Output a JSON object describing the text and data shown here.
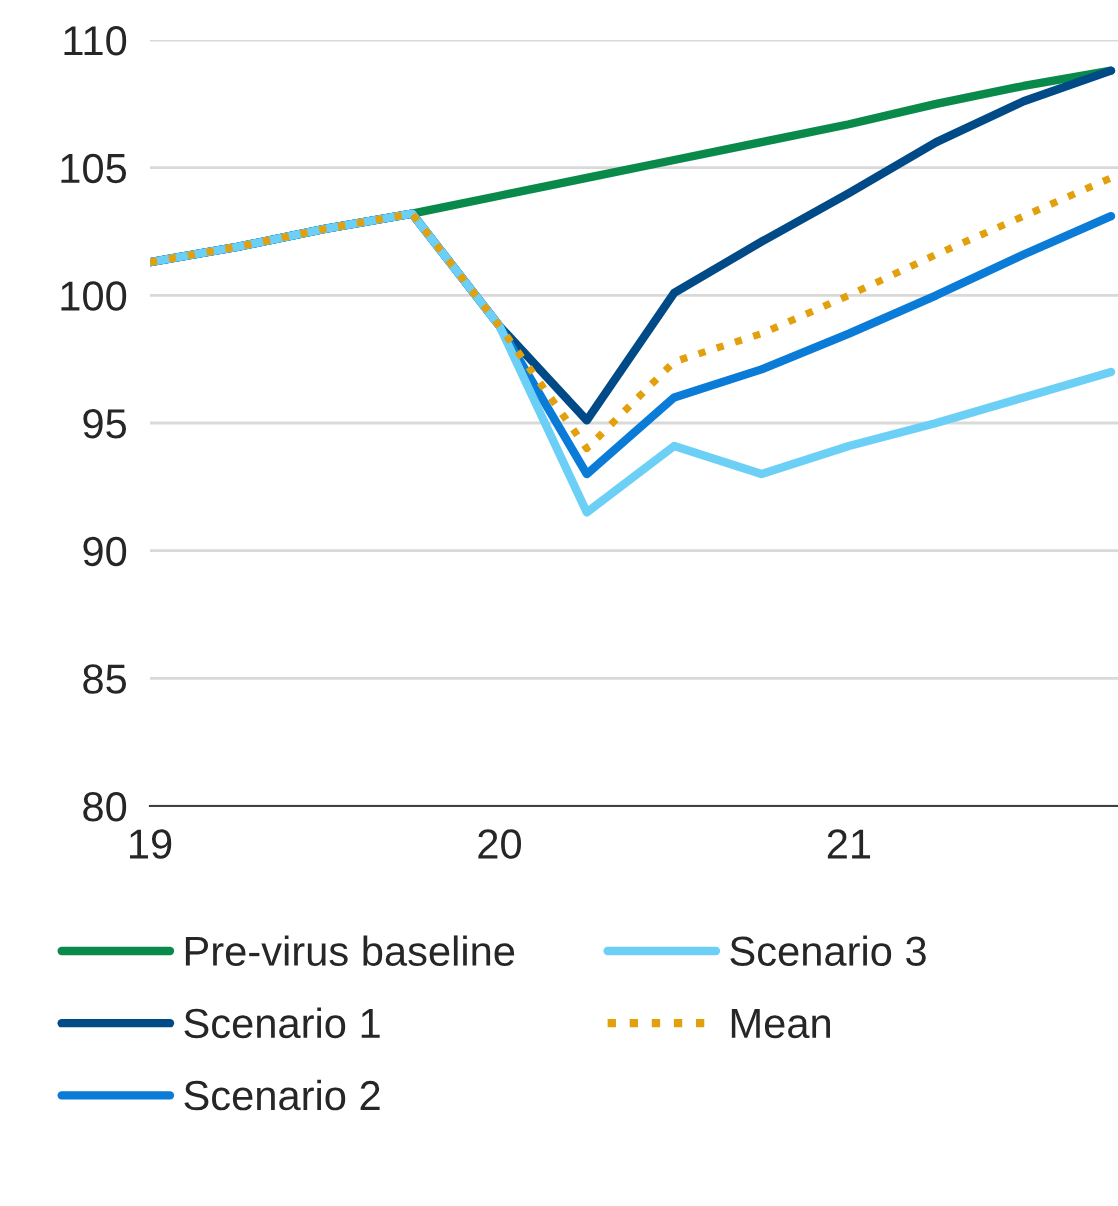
{
  "chart_data": {
    "type": "line",
    "x": [
      19,
      19.25,
      19.5,
      19.75,
      20,
      20.25,
      20.5,
      20.75,
      21,
      21.25,
      21.5,
      21.75
    ],
    "series": [
      {
        "name": "Pre-virus baseline",
        "color": "#0a8a4a",
        "values": [
          101.3,
          101.9,
          102.6,
          103.2,
          103.9,
          104.6,
          105.3,
          106.0,
          106.7,
          107.5,
          108.2,
          108.8
        ]
      },
      {
        "name": "Scenario 1",
        "color": "#004b87",
        "values": [
          101.3,
          101.9,
          102.6,
          103.2,
          98.8,
          95.1,
          100.1,
          102.1,
          104.0,
          106.0,
          107.6,
          108.8
        ]
      },
      {
        "name": "Scenario 2",
        "color": "#0a7bd6",
        "values": [
          101.3,
          101.9,
          102.6,
          103.2,
          98.8,
          93.0,
          96.0,
          97.1,
          98.5,
          100.0,
          101.6,
          103.1
        ]
      },
      {
        "name": "Scenario 3",
        "color": "#6ccff6",
        "values": [
          101.3,
          101.9,
          102.6,
          103.2,
          98.8,
          91.5,
          94.1,
          93.0,
          94.1,
          95.0,
          96.0,
          97.0
        ]
      },
      {
        "name": "Mean",
        "color": "#e2a00c",
        "line_style": "dotted",
        "values": [
          101.3,
          101.9,
          102.6,
          103.2,
          98.8,
          94.0,
          97.4,
          98.5,
          100.0,
          101.6,
          103.1,
          104.6
        ]
      }
    ],
    "xlim": [
      19,
      21.77
    ],
    "xticks": [
      19,
      20,
      21
    ],
    "ylim": [
      80,
      110
    ],
    "yticks": [
      80,
      85,
      90,
      95,
      100,
      105,
      110
    ],
    "grid": "y",
    "legend": "bottom",
    "line_style": "solid",
    "marker": "none"
  }
}
